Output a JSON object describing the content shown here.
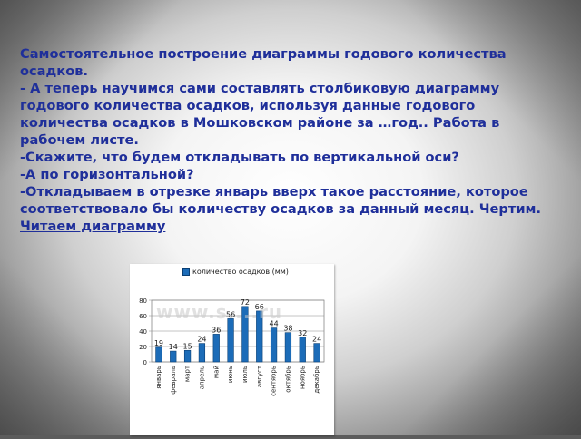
{
  "text": {
    "line1": "Самостоятельное построение диаграммы годового количества осадков.",
    "line2": "- А теперь научимся сами составлять  столбиковую диаграмму годового количества осадков, используя данные годового количества осадков в Мошковском районе за …год.. Работа в рабочем листе.",
    "line3": "-Скажите, что будем откладывать по вертикальной оси?",
    "line4": "-А по горизонтальной?",
    "line5": "-Откладываем в отрезке январь вверх такое расстояние, которое соответствовало бы количеству осадков за данный месяц. Чертим.",
    "link": "Читаем диаграмму"
  },
  "watermark": "www.s....ru",
  "chart_data": {
    "type": "bar",
    "legend": "количество осадков (мм)",
    "categories": [
      "январь",
      "февраль",
      "март",
      "апрель",
      "май",
      "июнь",
      "июль",
      "август",
      "сентябрь",
      "октябрь",
      "ноябрь",
      "декабрь"
    ],
    "values": [
      19,
      14,
      15,
      24,
      36,
      56,
      72,
      66,
      44,
      38,
      32,
      24
    ],
    "yticks": [
      0,
      20,
      40,
      60,
      80
    ],
    "ylim": [
      0,
      80
    ],
    "bar_color": "#1c6cb8",
    "grid": true
  }
}
